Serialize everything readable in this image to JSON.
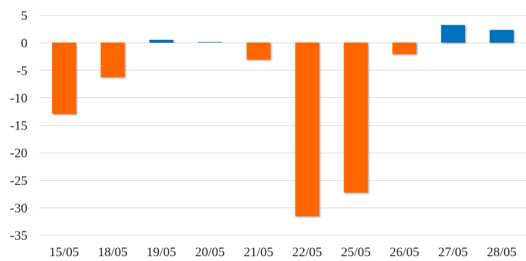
{
  "chart_data": {
    "type": "bar",
    "title": "",
    "xlabel": "",
    "ylabel": "",
    "categories": [
      "15/05",
      "18/05",
      "19/05",
      "20/05",
      "21/05",
      "22/05",
      "25/05",
      "26/05",
      "27/05",
      "28/05"
    ],
    "values": [
      -13.0,
      -6.3,
      0.5,
      0.1,
      -3.1,
      -31.6,
      -27.3,
      -2.1,
      3.2,
      2.3
    ],
    "ylim": [
      -35,
      5
    ],
    "yticks": [
      5,
      0,
      -5,
      -10,
      -15,
      -20,
      -25,
      -30,
      -35
    ],
    "grid": true,
    "legend": "none",
    "colors": {
      "positive": "#0070c0",
      "negative": "#ff6600",
      "grid": "#d9d9d9",
      "text": "#222222"
    }
  }
}
